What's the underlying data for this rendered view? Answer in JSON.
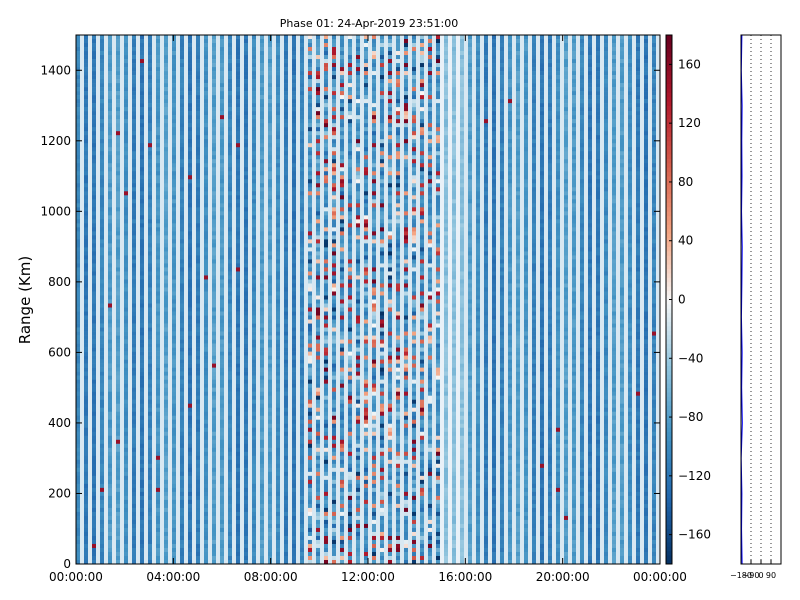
{
  "chart_data": [
    {
      "type": "heatmap",
      "title": "Phase 01: 24-Apr-2019 23:51:00",
      "xlabel": "",
      "ylabel": "Range (Km)",
      "x_tick_labels": [
        "00:00:00",
        "04:00:00",
        "08:00:00",
        "12:00:00",
        "16:00:00",
        "20:00:00",
        "00:00:00"
      ],
      "x_range_hours": [
        0,
        24
      ],
      "y_ticks": [
        0,
        200,
        400,
        600,
        800,
        1000,
        1200,
        1400
      ],
      "ylim": [
        0,
        1500
      ],
      "colormap": "RdBu_r",
      "colorbar": {
        "ticks": [
          -160,
          -120,
          -80,
          -40,
          0,
          40,
          80,
          120,
          160
        ],
        "range": [
          -180,
          180
        ]
      },
      "grid": false,
      "structure": {
        "noise_band_hours": [
          9.5,
          15.0
        ],
        "bright_band_hours": [
          15.0,
          16.0
        ],
        "dominant_phase_deg": -100
      }
    },
    {
      "type": "line",
      "title": "",
      "xlabel": "",
      "ylabel": "",
      "x_tick_labels": [
        "−180",
        "−90",
        "0",
        "90"
      ],
      "xlim": [
        -180,
        180
      ],
      "ylim": [
        0,
        1500
      ],
      "series_color": "#0000ff",
      "series": [
        {
          "name": "",
          "x": [
            -170,
            -175,
            -172,
            -178,
            -168,
            -174,
            -170,
            -176,
            -172,
            -169,
            -175,
            -171,
            -173,
            -170,
            -177,
            -172
          ],
          "y": [
            0,
            100,
            200,
            300,
            400,
            500,
            600,
            700,
            800,
            900,
            1000,
            1100,
            1200,
            1300,
            1400,
            1500
          ]
        }
      ]
    }
  ]
}
